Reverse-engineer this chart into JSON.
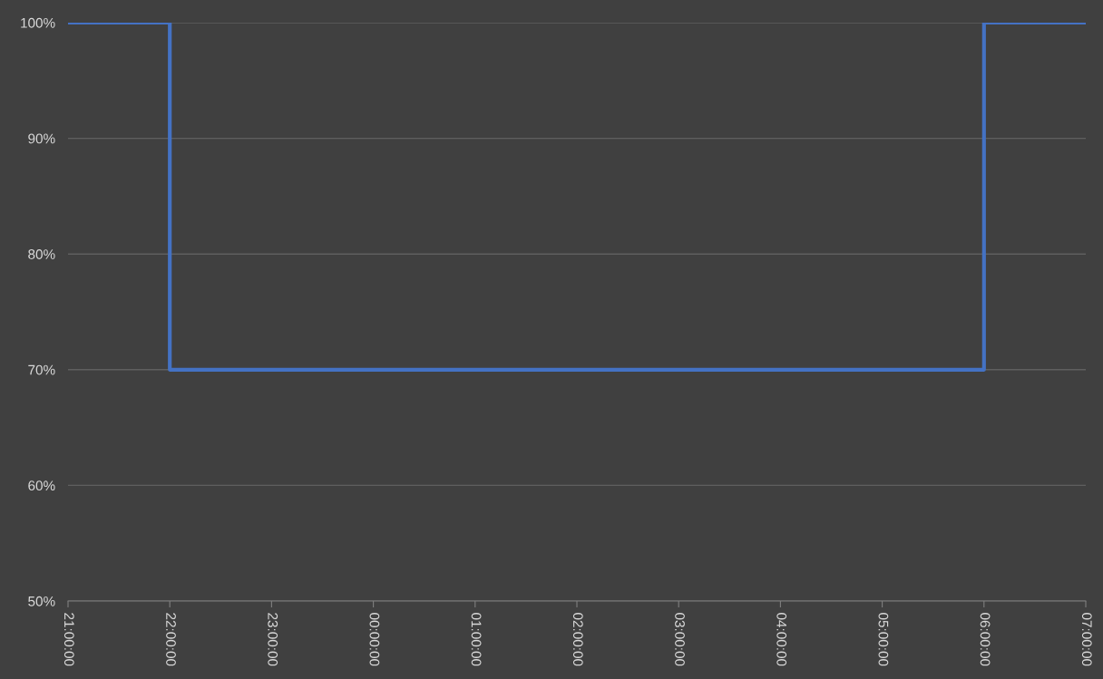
{
  "chart_data": {
    "type": "step",
    "categories": [
      "21:00:00",
      "22:00:00",
      "23:00:00",
      "00:00:00",
      "01:00:00",
      "02:00:00",
      "03:00:00",
      "04:00:00",
      "05:00:00",
      "06:00:00",
      "07:00:00"
    ],
    "series": [
      {
        "color": "#4472c4",
        "values": [
          100,
          70,
          70,
          70,
          70,
          70,
          70,
          70,
          70,
          100,
          100
        ]
      }
    ],
    "ylim": [
      50,
      100
    ],
    "yticks": [
      {
        "value": 50,
        "label": "50%"
      },
      {
        "value": 60,
        "label": "60%"
      },
      {
        "value": 70,
        "label": "70%"
      },
      {
        "value": 80,
        "label": "80%"
      },
      {
        "value": 90,
        "label": "90%"
      },
      {
        "value": 100,
        "label": "100%"
      }
    ],
    "grid": "y",
    "line_style": "solid",
    "marker": "none"
  }
}
